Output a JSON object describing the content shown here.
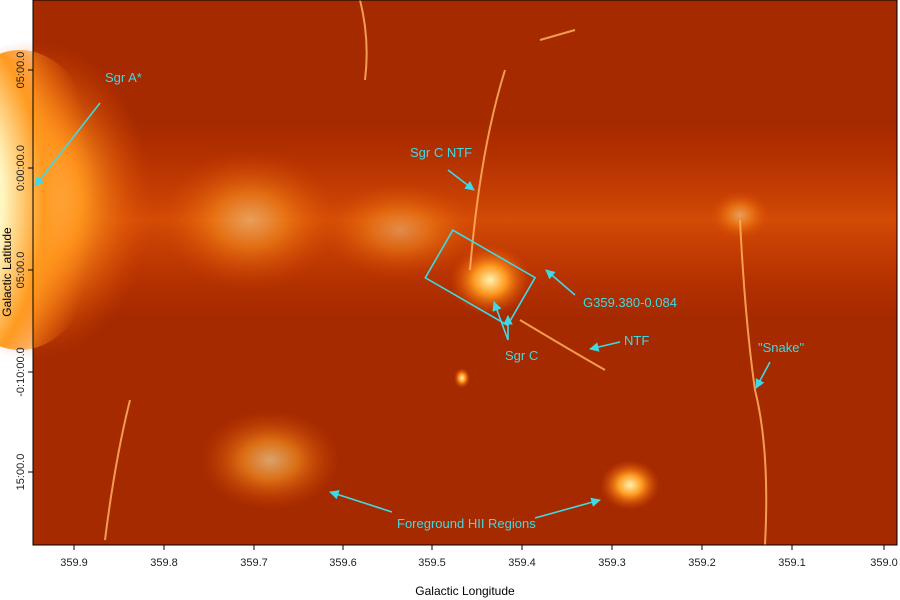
{
  "axes": {
    "x_label": "Galactic Longitude",
    "y_label": "Galactic Latitude",
    "x_ticks": [
      "359.9",
      "359.8",
      "359.7",
      "359.6",
      "359.5",
      "359.4",
      "359.3",
      "359.2",
      "359.1",
      "359.0"
    ],
    "y_ticks": [
      "05:00.0",
      "0:00:00.0",
      "05:00.0",
      "-0:10:00.0",
      "15:00.0"
    ]
  },
  "annotations": [
    "Sgr A*",
    "Sgr C NTF",
    "G359.380-0.084",
    "Sgr C",
    "NTF",
    "\"Snake\"",
    "Foreground HII Regions"
  ]
}
